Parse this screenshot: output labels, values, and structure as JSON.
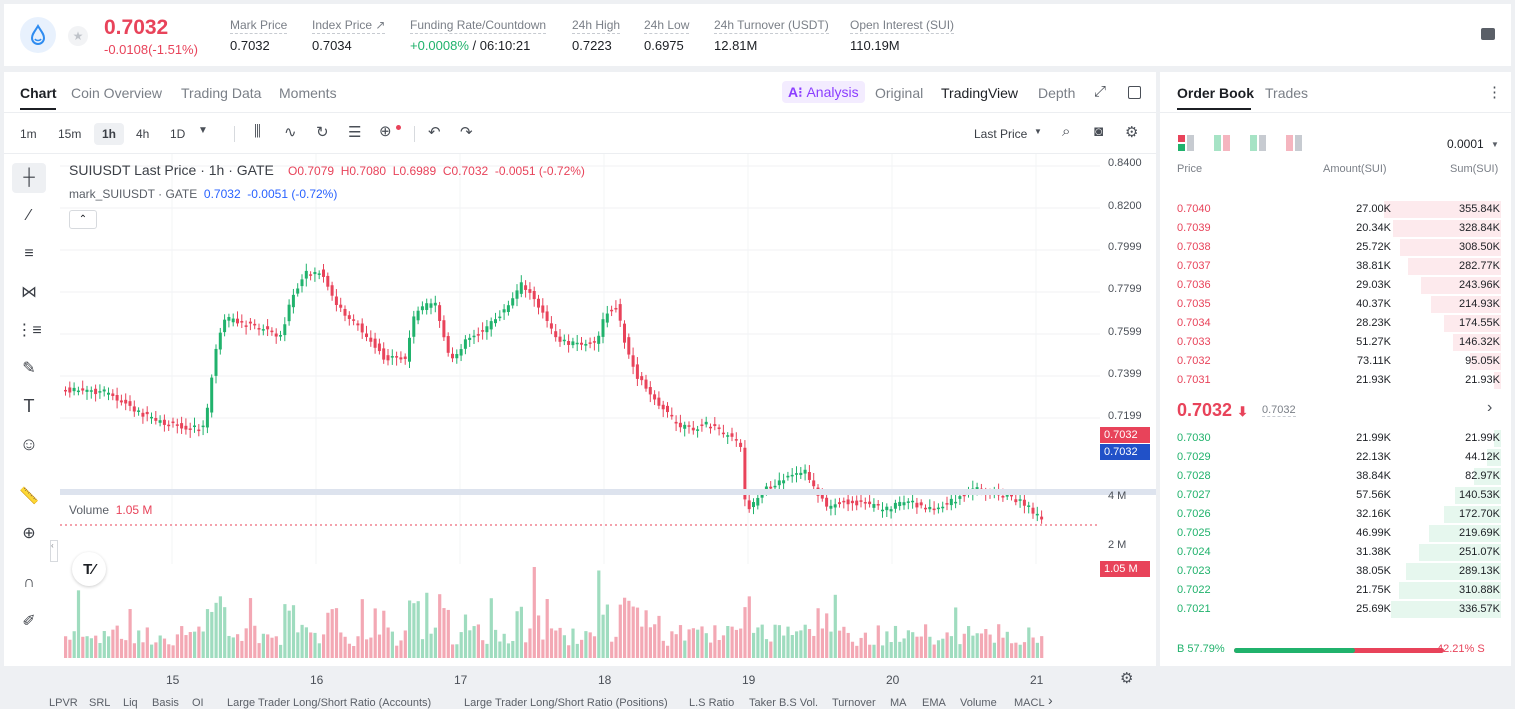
{
  "header": {
    "price": "0.7032",
    "change": "-0.0108(-1.51%)",
    "stats": [
      {
        "label": "Mark Price",
        "value": "0.7032"
      },
      {
        "label": "Index Price ↗",
        "value": "0.7034"
      },
      {
        "label": "Funding Rate/Countdown",
        "value_green": "+0.0008%",
        "value_rest": " / 06:10:21"
      },
      {
        "label": "24h High",
        "value": "0.7223"
      },
      {
        "label": "24h Low",
        "value": "0.6975"
      },
      {
        "label": "24h Turnover (USDT)",
        "value": "12.81M"
      },
      {
        "label": "Open Interest (SUI)",
        "value": "110.19M"
      }
    ]
  },
  "chart_tabs": [
    "Chart",
    "Coin Overview",
    "Trading Data",
    "Moments"
  ],
  "view_tabs": {
    "analysis": "Analysis",
    "original": "Original",
    "tradingview": "TradingView",
    "depth": "Depth"
  },
  "timeframes": [
    "1m",
    "15m",
    "1h",
    "4h",
    "1D"
  ],
  "last_price_select": "Last Price",
  "legend": {
    "title": "SUIUSDT Last Price · 1h · GATE",
    "o": "O0.7079",
    "h": "H0.7080",
    "l": "L0.6989",
    "c": "C0.7032",
    "chg": "-0.0051 (-0.72%)",
    "mark": "mark_SUIUSDT · GATE",
    "mark_val": "0.7032",
    "mark_chg": "-0.0051 (-0.72%)"
  },
  "y_axis": [
    "0.8400",
    "0.8200",
    "0.7999",
    "0.7799",
    "0.7599",
    "0.7399",
    "0.7199"
  ],
  "price_tags": [
    "0.7032",
    "0.7032"
  ],
  "volume": {
    "label": "Volume",
    "value": "1.05 M",
    "axis": [
      "4 M",
      "2 M"
    ],
    "tag": "1.05 M"
  },
  "x_axis": [
    "15",
    "16",
    "17",
    "18",
    "19",
    "20",
    "21"
  ],
  "indicators": [
    "LPVR",
    "SRL",
    "Liq",
    "Basis",
    "OI",
    "Large Trader Long/Short Ratio (Accounts)",
    "Large Trader Long/Short Ratio (Positions)",
    "L.S Ratio",
    "Taker B.S Vol.",
    "Turnover",
    "MA",
    "EMA",
    "Volume",
    "MACL"
  ],
  "orderbook": {
    "tabs": [
      "Order Book",
      "Trades"
    ],
    "precision": "0.0001",
    "headers": [
      "Price",
      "Amount(SUI)",
      "Sum(SUI)"
    ],
    "asks": [
      [
        "0.7040",
        "27.00K",
        "355.84K"
      ],
      [
        "0.7039",
        "20.34K",
        "328.84K"
      ],
      [
        "0.7038",
        "25.72K",
        "308.50K"
      ],
      [
        "0.7037",
        "38.81K",
        "282.77K"
      ],
      [
        "0.7036",
        "29.03K",
        "243.96K"
      ],
      [
        "0.7035",
        "40.37K",
        "214.93K"
      ],
      [
        "0.7034",
        "28.23K",
        "174.55K"
      ],
      [
        "0.7033",
        "51.27K",
        "146.32K"
      ],
      [
        "0.7032",
        "73.11K",
        "95.05K"
      ],
      [
        "0.7031",
        "21.93K",
        "21.93K"
      ]
    ],
    "last": "0.7032",
    "last_arrow": "⬇",
    "mark": "0.7032",
    "bids": [
      [
        "0.7030",
        "21.99K",
        "21.99K"
      ],
      [
        "0.7029",
        "22.13K",
        "44.12K"
      ],
      [
        "0.7028",
        "38.84K",
        "82.97K"
      ],
      [
        "0.7027",
        "57.56K",
        "140.53K"
      ],
      [
        "0.7026",
        "32.16K",
        "172.70K"
      ],
      [
        "0.7025",
        "46.99K",
        "219.69K"
      ],
      [
        "0.7024",
        "31.38K",
        "251.07K"
      ],
      [
        "0.7023",
        "38.05K",
        "289.13K"
      ],
      [
        "0.7022",
        "21.75K",
        "310.88K"
      ],
      [
        "0.7021",
        "25.69K",
        "336.57K"
      ]
    ],
    "ratio_b": "B 57.79%",
    "ratio_s": "42.21% S",
    "buy_pct": 57.79
  },
  "colors": {
    "up": "#20b26c",
    "down": "#e8435a",
    "accent": "#8b3dff"
  }
}
